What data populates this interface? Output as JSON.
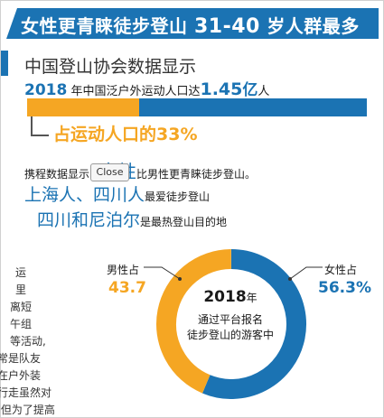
{
  "header": {
    "title_prefix": "女性更青睐徒步登山",
    "title_num": "31-40",
    "title_suffix": "岁人群最多"
  },
  "source": {
    "text": "中国登山协会数据显示"
  },
  "population": {
    "year": "2018",
    "mid": " 年中国泛户外运动人口达",
    "value": "1.45",
    "unit": "亿",
    "unit_tail": "人"
  },
  "share": {
    "text": "占运动人口的33%",
    "value_percent": 33
  },
  "ctrip": {
    "prefix": "携程数据显示",
    "big": "女性",
    "suffix": "比男性更青睐徒步登山。"
  },
  "close_button": {
    "label": "Close"
  },
  "region": {
    "big": "上海人、四川人",
    "suffix": "最爱徒步登山"
  },
  "destination": {
    "big": "四川和尼泊尔",
    "suffix": "是最热登山目的地"
  },
  "donut": {
    "year": "2018",
    "year_unit": "年",
    "line1": "通过平台报名",
    "line2": "徒步登山的游客中",
    "male_label": "男性占",
    "male_value": "43.7",
    "female_label": "女性占",
    "female_value": "56.3%",
    "male_percent": 43.7,
    "female_percent": 56.3
  },
  "article_lines": [
    "运",
    "里",
    "离短",
    "午组",
    "等活动,",
    "常是队友",
    "在户外装",
    "行走虽然对",
    ",但为了提高"
  ],
  "colors": {
    "blue": "#1b73b3",
    "orange": "#f5a623"
  }
}
